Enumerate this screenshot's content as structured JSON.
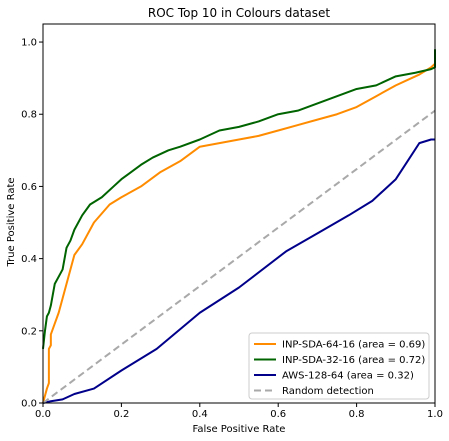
{
  "chart_data": {
    "type": "line",
    "title": "ROC Top 10 in Colours dataset",
    "xlabel": "False Positive Rate",
    "ylabel": "True Positive Rate",
    "xlim": [
      0,
      1.0
    ],
    "ylim": [
      0,
      1.05
    ],
    "x_ticks": [
      0.0,
      0.2,
      0.4,
      0.6,
      0.8,
      1.0
    ],
    "x_tick_labels": [
      "0.0",
      "0.2",
      "0.4",
      "0.6",
      "0.8",
      "1.0"
    ],
    "y_ticks": [
      0.0,
      0.2,
      0.4,
      0.6,
      0.8,
      1.0
    ],
    "y_tick_labels": [
      "0.0",
      "0.2",
      "0.4",
      "0.6",
      "0.8",
      "1.0"
    ],
    "grid": false,
    "legend_position": "lower-right",
    "series": [
      {
        "name": "INP-SDA-64-16 (area = 0.69)",
        "color": "#ff8c00",
        "dashed": false,
        "x": [
          0.0,
          0.01,
          0.015,
          0.015,
          0.02,
          0.02,
          0.03,
          0.04,
          0.06,
          0.08,
          0.1,
          0.13,
          0.17,
          0.2,
          0.25,
          0.3,
          0.35,
          0.4,
          0.5,
          0.55,
          0.6,
          0.65,
          0.7,
          0.75,
          0.8,
          0.85,
          0.9,
          0.93,
          0.96,
          0.99,
          1.0
        ],
        "y": [
          0.0,
          0.04,
          0.055,
          0.15,
          0.16,
          0.19,
          0.22,
          0.25,
          0.33,
          0.41,
          0.44,
          0.5,
          0.55,
          0.57,
          0.6,
          0.64,
          0.67,
          0.71,
          0.73,
          0.74,
          0.755,
          0.77,
          0.785,
          0.8,
          0.82,
          0.85,
          0.88,
          0.895,
          0.91,
          0.93,
          0.94
        ]
      },
      {
        "name": "INP-SDA-32-16 (area = 0.72)",
        "color": "#006400",
        "dashed": false,
        "x": [
          0.0,
          0.005,
          0.01,
          0.015,
          0.02,
          0.025,
          0.03,
          0.04,
          0.05,
          0.06,
          0.07,
          0.08,
          0.1,
          0.12,
          0.15,
          0.18,
          0.2,
          0.25,
          0.28,
          0.32,
          0.35,
          0.4,
          0.45,
          0.5,
          0.55,
          0.6,
          0.65,
          0.7,
          0.75,
          0.8,
          0.85,
          0.9,
          0.95,
          0.99,
          1.0,
          1.0
        ],
        "y": [
          0.15,
          0.2,
          0.24,
          0.25,
          0.27,
          0.3,
          0.33,
          0.35,
          0.37,
          0.43,
          0.45,
          0.48,
          0.52,
          0.55,
          0.57,
          0.6,
          0.62,
          0.66,
          0.68,
          0.7,
          0.71,
          0.73,
          0.755,
          0.765,
          0.78,
          0.8,
          0.81,
          0.83,
          0.85,
          0.87,
          0.88,
          0.905,
          0.915,
          0.925,
          0.93,
          0.98
        ]
      },
      {
        "name": "AWS-128-64 (area = 0.32)",
        "color": "#00008b",
        "dashed": false,
        "x": [
          0.0,
          0.02,
          0.05,
          0.08,
          0.13,
          0.2,
          0.29,
          0.4,
          0.5,
          0.62,
          0.7,
          0.78,
          0.84,
          0.9,
          0.93,
          0.96,
          0.99,
          1.0
        ],
        "y": [
          0.0,
          0.005,
          0.01,
          0.025,
          0.04,
          0.09,
          0.15,
          0.25,
          0.32,
          0.42,
          0.47,
          0.52,
          0.56,
          0.62,
          0.67,
          0.72,
          0.73,
          0.73
        ]
      },
      {
        "name": "Random detection",
        "color": "#a9a9a9",
        "dashed": true,
        "x": [
          0.0,
          1.0
        ],
        "y": [
          0.0,
          0.81
        ]
      }
    ]
  }
}
